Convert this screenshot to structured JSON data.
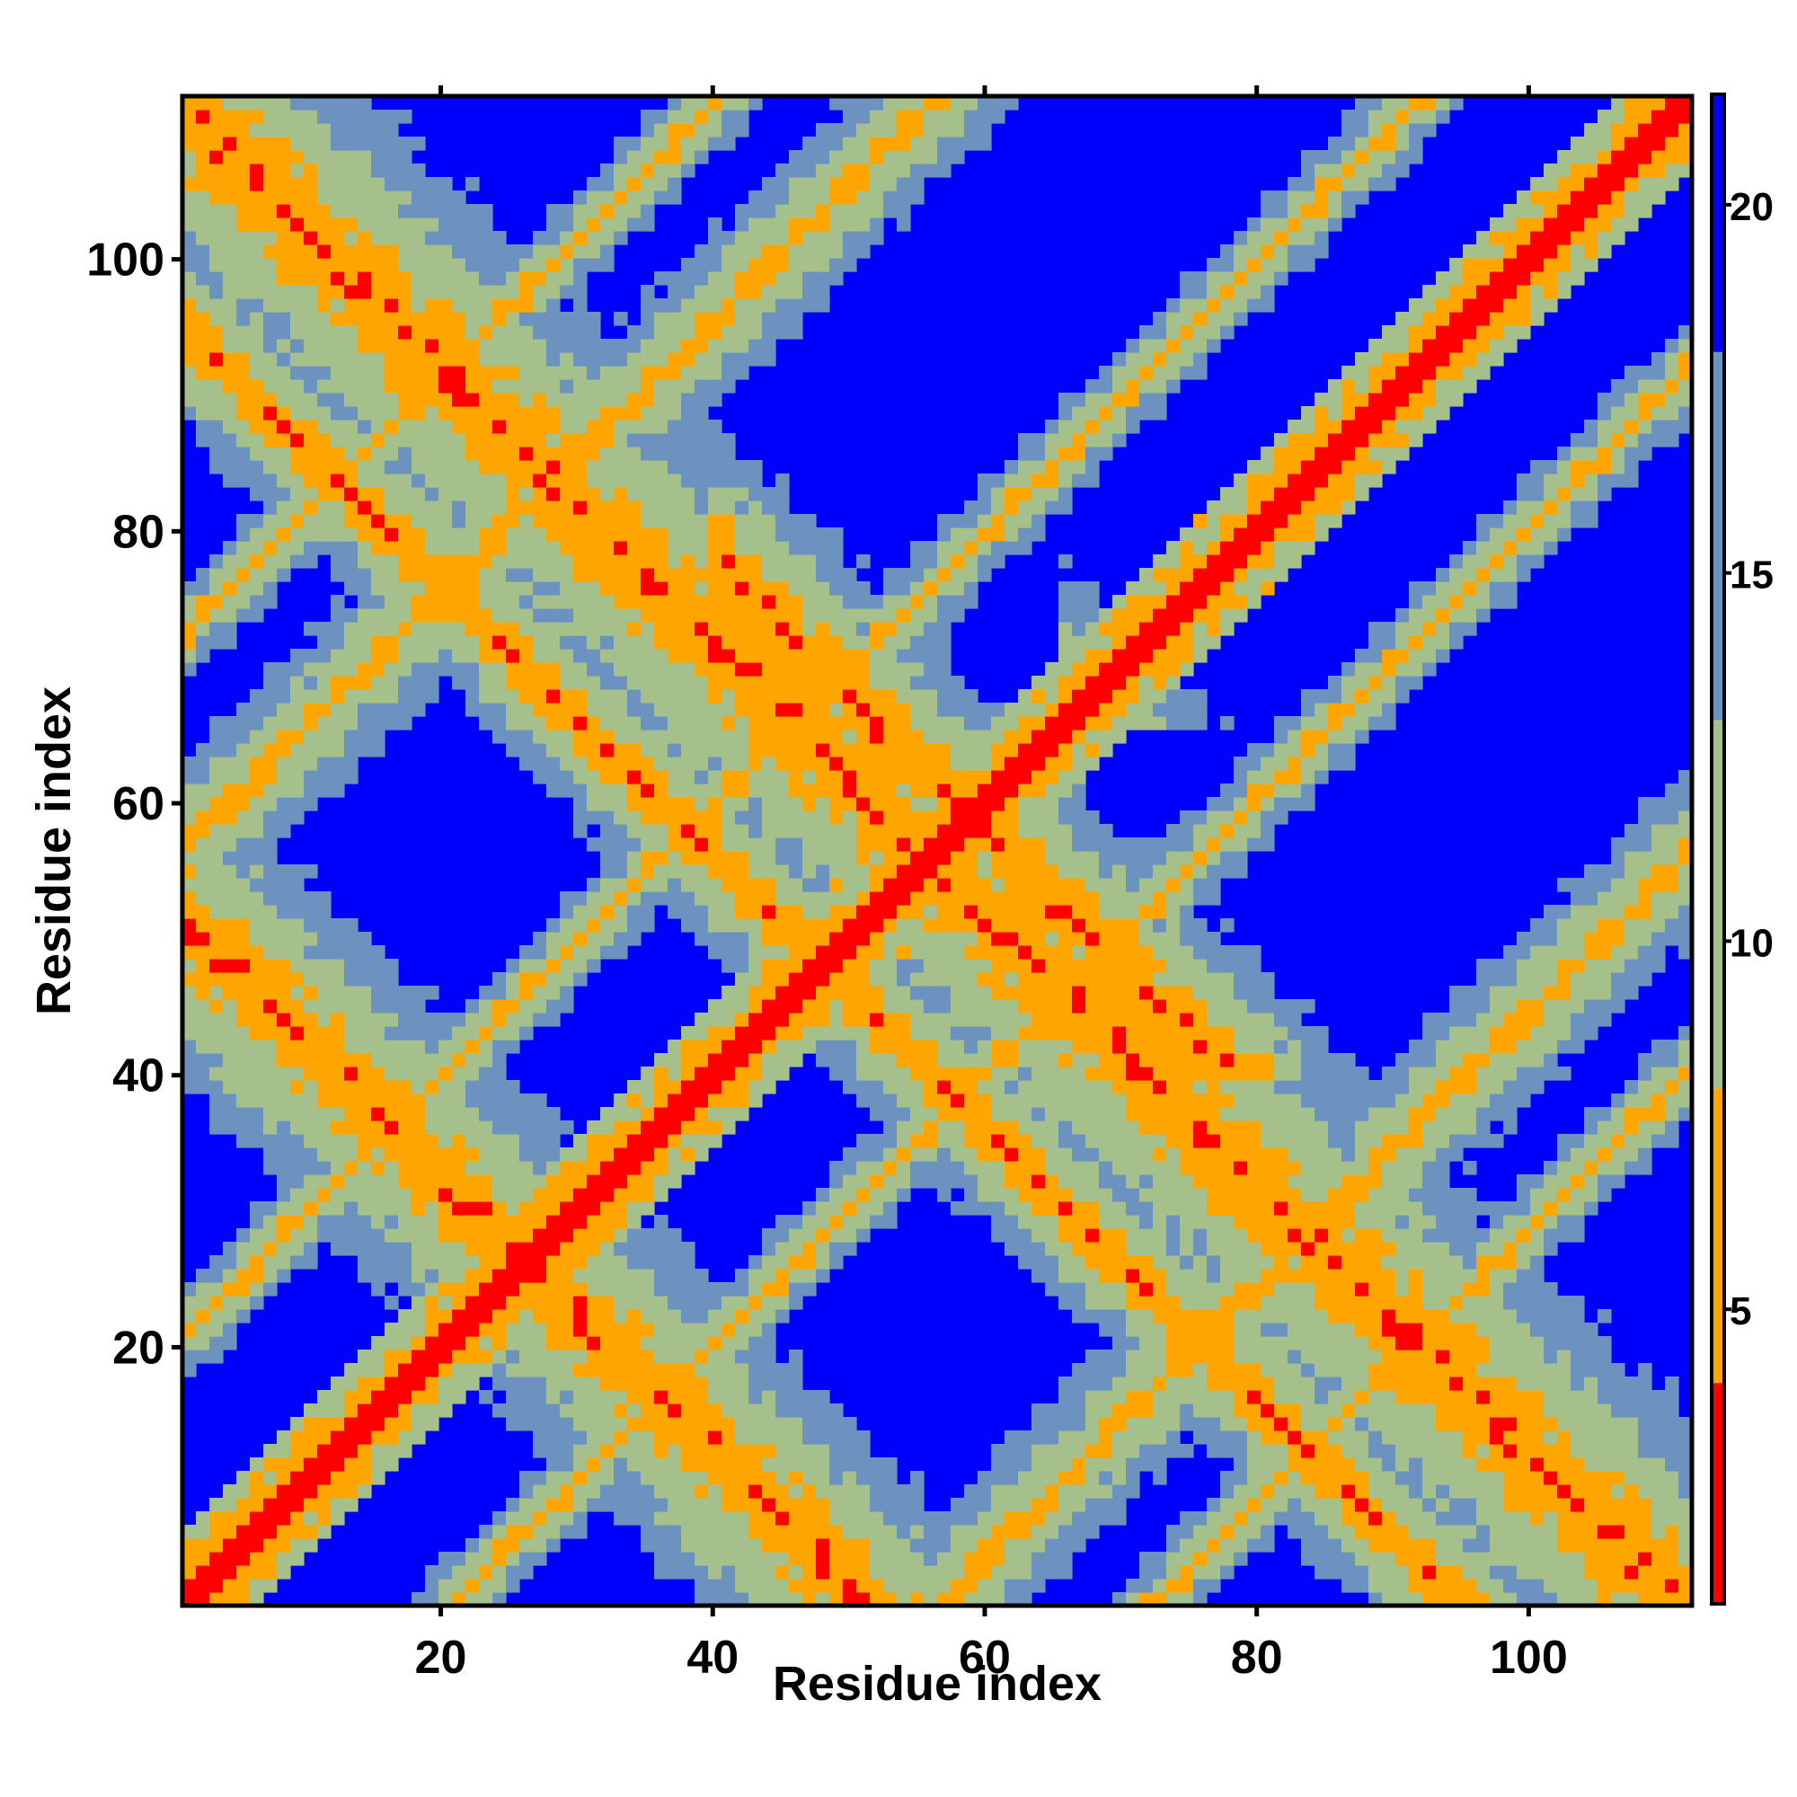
{
  "chart_data": {
    "type": "heatmap",
    "title": "",
    "xlabel": "Residue index",
    "ylabel": "Residue index",
    "x_range": [
      1,
      112
    ],
    "y_range": [
      1,
      112
    ],
    "x_ticks": [
      20,
      40,
      60,
      80,
      100
    ],
    "y_ticks": [
      20,
      40,
      60,
      80,
      100
    ],
    "colorbar": {
      "range": [
        1,
        21.5
      ],
      "ticks": [
        5,
        10,
        15,
        20
      ],
      "bands": [
        {
          "from": 1,
          "to": 4,
          "color": "#ff0000"
        },
        {
          "from": 4,
          "to": 8,
          "color": "#ffa500"
        },
        {
          "from": 8,
          "to": 13,
          "color": "#a6c08c"
        },
        {
          "from": 13,
          "to": 18,
          "color": "#6c92c0"
        },
        {
          "from": 18,
          "to": 21.5,
          "color": "#0000ff"
        }
      ]
    },
    "contact_model": {
      "description_hidden": false,
      "diagonal_band": 1.5,
      "antiparallel_pairs": [
        {
          "sum": 112,
          "i_range": [
            1,
            112
          ],
          "strength": 1.0
        },
        {
          "sum": 52,
          "i_range": [
            1,
            51
          ],
          "strength": 0.85
        },
        {
          "sum": 132,
          "i_range": [
            66,
            112
          ],
          "strength": 0.8
        },
        {
          "sum": 96,
          "i_range": [
            1,
            95
          ],
          "strength": 0.5
        },
        {
          "sum": 88,
          "i_range": [
            44,
            88
          ],
          "strength": 0.55
        },
        {
          "sum": 118,
          "i_range": [
            40,
            112
          ],
          "strength": 0.7
        }
      ],
      "parallel_pairs": [
        {
          "offset": 56,
          "strength": 0.6
        },
        {
          "offset": 20,
          "strength": 0.35
        },
        {
          "offset": 72,
          "strength": 0.35
        }
      ]
    },
    "legend": "right colorbar",
    "grid": false
  }
}
